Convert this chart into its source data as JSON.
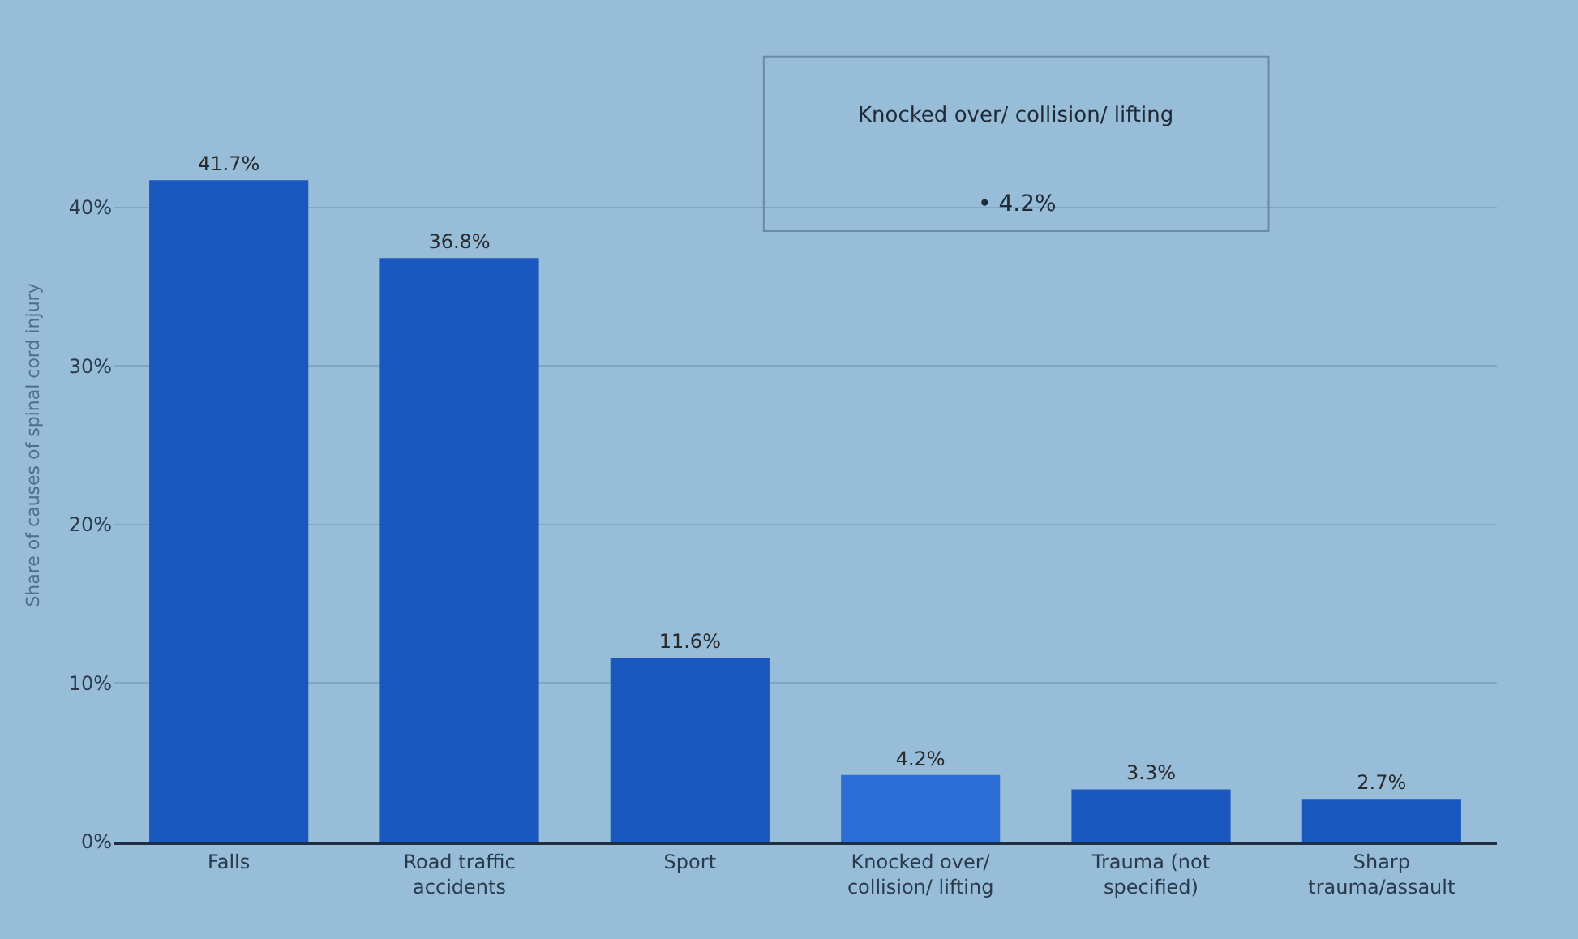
{
  "chart_data": {
    "type": "bar",
    "ylabel": "Share of causes of spinal cord injury",
    "categories": [
      "Falls",
      "Road traffic\naccidents",
      "Sport",
      "Knocked over/\ncollision/ lifting",
      "Trauma (not\nspecified)",
      "Sharp\ntrauma/assault"
    ],
    "values": [
      41.7,
      36.8,
      11.6,
      4.2,
      3.3,
      2.7
    ],
    "colors": [
      "#1a58bf",
      "#1a58bf",
      "#1a58bf",
      "#2b6fd6",
      "#1a58bf",
      "#1a58bf"
    ],
    "value_labels": [
      "41.7%",
      "36.8%",
      "11.6%",
      "4.2%",
      "3.3%",
      "2.7%"
    ],
    "ylim": [
      0,
      50
    ],
    "yticks": [
      {
        "value": 0,
        "label": "0%"
      },
      {
        "value": 10,
        "label": "10%"
      },
      {
        "value": 20,
        "label": "20%"
      },
      {
        "value": 30,
        "label": "30%"
      },
      {
        "value": 40,
        "label": "40%"
      },
      {
        "value": 50,
        "label": null
      }
    ],
    "grid": "y",
    "annotations": [
      "Knocked over/ collision/ lifting",
      "• 4.2%"
    ]
  }
}
